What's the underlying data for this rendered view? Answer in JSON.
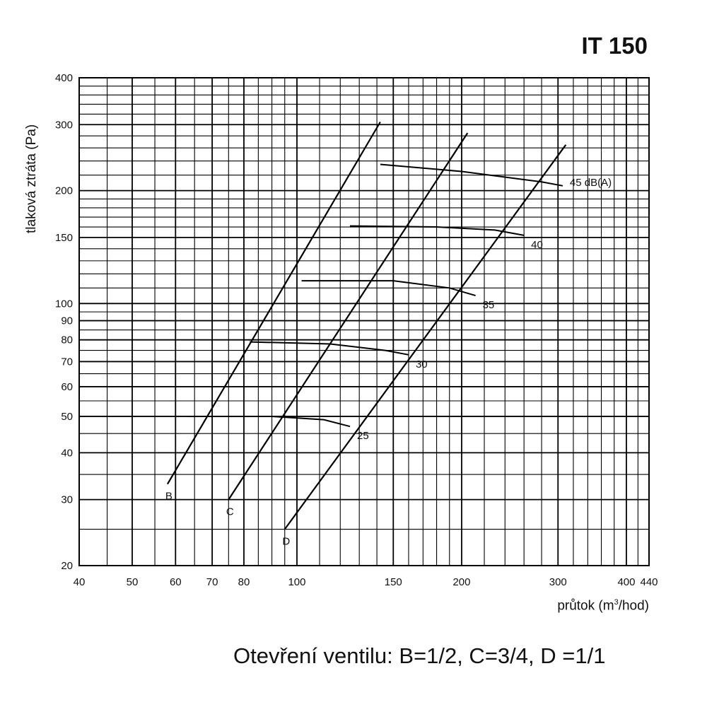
{
  "header": {
    "title": "IT 150"
  },
  "footer": {
    "note": "Otevření ventilu: B=1/2, C=3/4, D =1/1"
  },
  "chart_data": {
    "type": "line",
    "title": "IT 150",
    "ylabel": "tlaková ztráta (Pa)",
    "xlabel_prefix": "průtok (m",
    "xlabel_sup": "3",
    "xlabel_suffix": "/hod)",
    "x_tick_labels": [
      "40",
      "50",
      "60",
      "70",
      "80",
      "100",
      "150",
      "200",
      "300",
      "400",
      "440"
    ],
    "y_tick_labels": [
      "20",
      "30",
      "40",
      "50",
      "60",
      "70",
      "80",
      "90",
      "100",
      "150",
      "200",
      "300",
      "400"
    ],
    "grid": true,
    "series": [
      {
        "name": "B",
        "points": [
          [
            58,
            33
          ],
          [
            142,
            305
          ]
        ]
      },
      {
        "name": "C",
        "points": [
          [
            75,
            30
          ],
          [
            205,
            285
          ]
        ]
      },
      {
        "name": "D",
        "points": [
          [
            95,
            25
          ],
          [
            310,
            265
          ]
        ]
      }
    ],
    "noise_curves": [
      {
        "name": "45 dB(A)",
        "points": [
          [
            142,
            235
          ],
          [
            200,
            225
          ],
          [
            280,
            211
          ],
          [
            306,
            206
          ]
        ]
      },
      {
        "name": "40",
        "points": [
          [
            125,
            161
          ],
          [
            180,
            160
          ],
          [
            230,
            157
          ],
          [
            260,
            152
          ]
        ]
      },
      {
        "name": "35",
        "points": [
          [
            102,
            115
          ],
          [
            150,
            115
          ],
          [
            190,
            110
          ],
          [
            212,
            105
          ]
        ]
      },
      {
        "name": "30",
        "points": [
          [
            82,
            79
          ],
          [
            115,
            78
          ],
          [
            145,
            75
          ],
          [
            160,
            73
          ]
        ]
      },
      {
        "name": "25",
        "points": [
          [
            63,
            50
          ],
          [
            90,
            50
          ],
          [
            112,
            49
          ],
          [
            125,
            47
          ]
        ]
      }
    ]
  }
}
